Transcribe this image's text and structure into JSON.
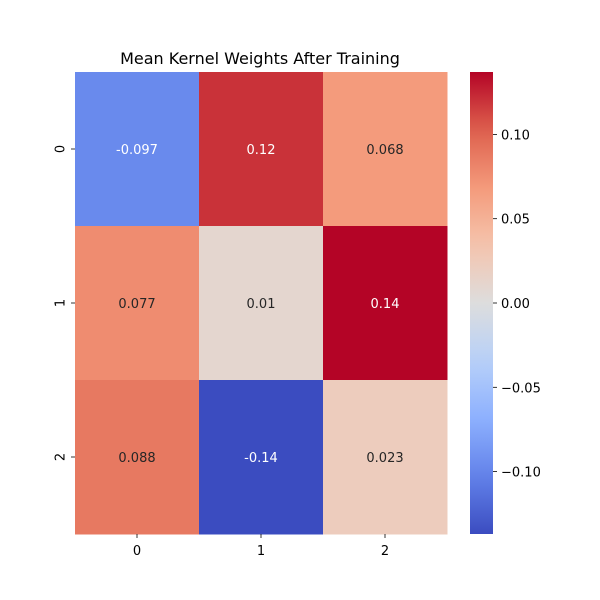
{
  "chart_data": {
    "type": "heatmap",
    "title": "Mean Kernel Weights After Training",
    "xlabel": "",
    "ylabel": "",
    "x_categories": [
      "0",
      "1",
      "2"
    ],
    "y_categories": [
      "0",
      "1",
      "2"
    ],
    "values": [
      [
        -0.097,
        0.12,
        0.068
      ],
      [
        0.077,
        0.01,
        0.14
      ],
      [
        0.088,
        -0.14,
        0.023
      ]
    ],
    "cell_labels": [
      [
        "-0.097",
        "0.12",
        "0.068"
      ],
      [
        "0.077",
        "0.01",
        "0.14"
      ],
      [
        "0.088",
        "-0.14",
        "0.023"
      ]
    ],
    "colormap": "coolwarm",
    "vmin": -0.137,
    "vmax": 0.137,
    "colorbar": {
      "ticks": [
        0.1,
        0.05,
        0.0,
        -0.05,
        -0.1
      ],
      "tick_labels": [
        "0.10",
        "0.05",
        "0.00",
        "−0.05",
        "−0.10"
      ]
    },
    "grid": false,
    "legend": "colorbar-right"
  }
}
